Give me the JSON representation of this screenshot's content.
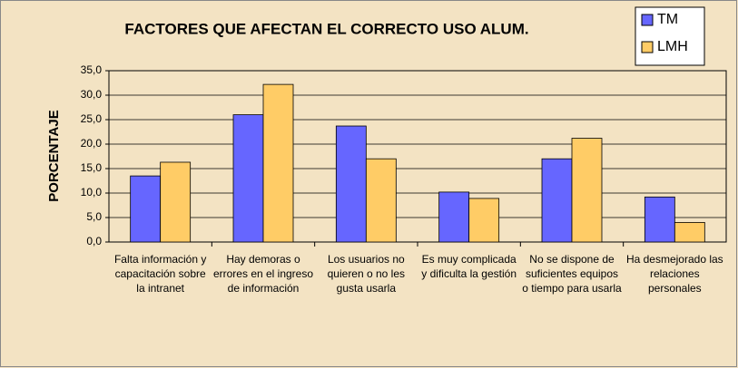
{
  "chart_data": {
    "type": "bar",
    "title": "FACTORES QUE AFECTAN EL CORRECTO USO ALUM.",
    "y_label": "PORCENTAJE",
    "categories": [
      "Falta información y capacitación sobre la intranet",
      "Hay demoras o errores en el ingreso de información",
      "Los usuarios no quieren o no les gusta usarla",
      "Es muy complicada y dificulta la gestión",
      "No se dispone de suficientes equipos o tiempo para usarla",
      "Ha desmejorado las relaciones personales"
    ],
    "series": [
      {
        "name": "TM",
        "color": "#6666ff",
        "values": [
          13.5,
          26.0,
          23.7,
          10.2,
          17.0,
          9.2
        ]
      },
      {
        "name": "LMH",
        "color": "#ffcc66",
        "values": [
          16.3,
          32.2,
          17.0,
          8.9,
          21.2,
          4.0
        ]
      }
    ],
    "ylim": [
      0,
      35
    ],
    "yticks": [
      {
        "value": 0,
        "label": "0,0"
      },
      {
        "value": 5,
        "label": "5,0"
      },
      {
        "value": 10,
        "label": "10,0"
      },
      {
        "value": 15,
        "label": "15,0"
      },
      {
        "value": 20,
        "label": "20,0"
      },
      {
        "value": 25,
        "label": "25,0"
      },
      {
        "value": 30,
        "label": "30,0"
      },
      {
        "value": 35,
        "label": "35,0"
      }
    ],
    "grid": true,
    "legend": "top-right"
  }
}
